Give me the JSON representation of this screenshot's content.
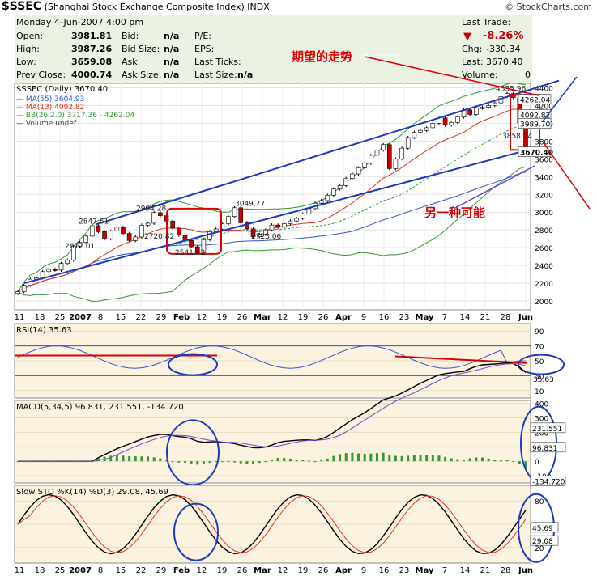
{
  "header": {
    "symbol": "$SSEC",
    "name": "(Shanghai Stock Exchange Composite Index)",
    "exchange": "INDX",
    "brand": "© StockCharts.com"
  },
  "quote": {
    "date": "Monday  4-Jun-2007  4:00 pm",
    "open_label": "Open:",
    "open": "3981.81",
    "high_label": "High:",
    "high": "3987.26",
    "low_label": "Low:",
    "low": "3659.08",
    "prev_label": "Prev Close:",
    "prev": "4000.74",
    "bid_label": "Bid:",
    "bid": "n/a",
    "bidsize_label": "Bid Size:",
    "bidsize": "n/a",
    "ask_label": "Ask:",
    "ask": "n/a",
    "asksize_label": "Ask Size:",
    "asksize": "n/a",
    "pe_label": "P/E:",
    "eps_label": "EPS:",
    "lastticks_label": "Last Ticks:",
    "lastsize_label": "Last Size:",
    "lastsize": "n/a",
    "lasttrade_label": "Last Trade:",
    "pct": "-8.26%",
    "chg_label": "Chg:",
    "chg": "-330.34",
    "last_label": "Last:",
    "last": "3670.40",
    "vol_label": "Volume:",
    "vol": "0"
  },
  "colors": {
    "up": "#ffffff",
    "down": "#cc0000",
    "ma55": "#3355cc",
    "ma13": "#dd3322",
    "bb": "#339933",
    "trend": "#1a3bbf",
    "annot": "#dd0000",
    "panel": "#fbf3e0"
  },
  "chart_data": [
    {
      "type": "candlestick",
      "title": "$SSEC (Daily) 3670.40",
      "legend": [
        "MA(55) 3604.93",
        "MA(13) 4092.82",
        "BB(26,2.0) 3717.36 - 4262.04",
        "Volume undef"
      ],
      "ylim": [
        1900,
        4450
      ],
      "y_ticks": [
        2000,
        2200,
        2400,
        2600,
        2800,
        3000,
        3200,
        3400,
        3600,
        3800,
        4000,
        4200,
        4400
      ],
      "x_tick_labels": [
        "11",
        "18",
        "25",
        "2007",
        "8",
        "15",
        "22",
        "29",
        "Feb",
        "12",
        "19",
        "26",
        "Mar",
        "12",
        "19",
        "26",
        "Apr",
        "9",
        "16",
        "23",
        "May",
        "7",
        "14",
        "21",
        "28",
        "Jun"
      ],
      "close": [
        2104,
        2176,
        2245,
        2260,
        2330,
        2355,
        2348,
        2422,
        2460,
        2617,
        2660,
        2730,
        2847,
        2780,
        2700,
        2786,
        2830,
        2760,
        2680,
        2720,
        2853,
        2875,
        2994,
        2960,
        2900,
        2820,
        2740,
        2680,
        2610,
        2541,
        2690,
        2780,
        2810,
        2870,
        2950,
        3049,
        2880,
        2812,
        2723,
        2750,
        2800,
        2855,
        2830,
        2870,
        2900,
        2930,
        2980,
        3040,
        3100,
        3130,
        3190,
        3260,
        3300,
        3380,
        3430,
        3500,
        3550,
        3640,
        3700,
        3760,
        3490,
        3600,
        3720,
        3840,
        3900,
        3920,
        3950,
        4000,
        4060,
        3980,
        4010,
        4070,
        4150,
        4100,
        4170,
        4180,
        4200,
        4230,
        4300,
        4335,
        4290,
        4000,
        3670
      ],
      "price_labels": [
        "2847.61",
        "2994.28",
        "3049.77",
        "2617.01",
        "2720.82",
        "2541.52",
        "2723.06",
        "4335.96",
        "3858.04"
      ],
      "right_labels": [
        "4262.04",
        "4092.82",
        "3989.70",
        "3670.40"
      ],
      "annotations": [
        "期望的走势",
        "另一种可能"
      ]
    },
    {
      "type": "line",
      "title": "RSI(14) 35.63",
      "ylim": [
        0,
        100
      ],
      "y_ticks": [
        10,
        30,
        50,
        70,
        90
      ],
      "right_label": "35.63"
    },
    {
      "type": "line",
      "title": "MACD(5,34,5) 96.831, 231.551, -134.720",
      "y_ticks": [
        -100,
        0,
        100,
        200,
        300,
        400
      ],
      "right_labels": [
        "231.551",
        "96.831",
        "-134.720"
      ]
    },
    {
      "type": "line",
      "title": "Slow STO %K(14) %D(3) 29.08, 45.69",
      "ylim": [
        0,
        100
      ],
      "y_ticks": [
        20,
        50,
        80
      ],
      "right_labels": [
        "45.69",
        "29.08"
      ]
    }
  ]
}
